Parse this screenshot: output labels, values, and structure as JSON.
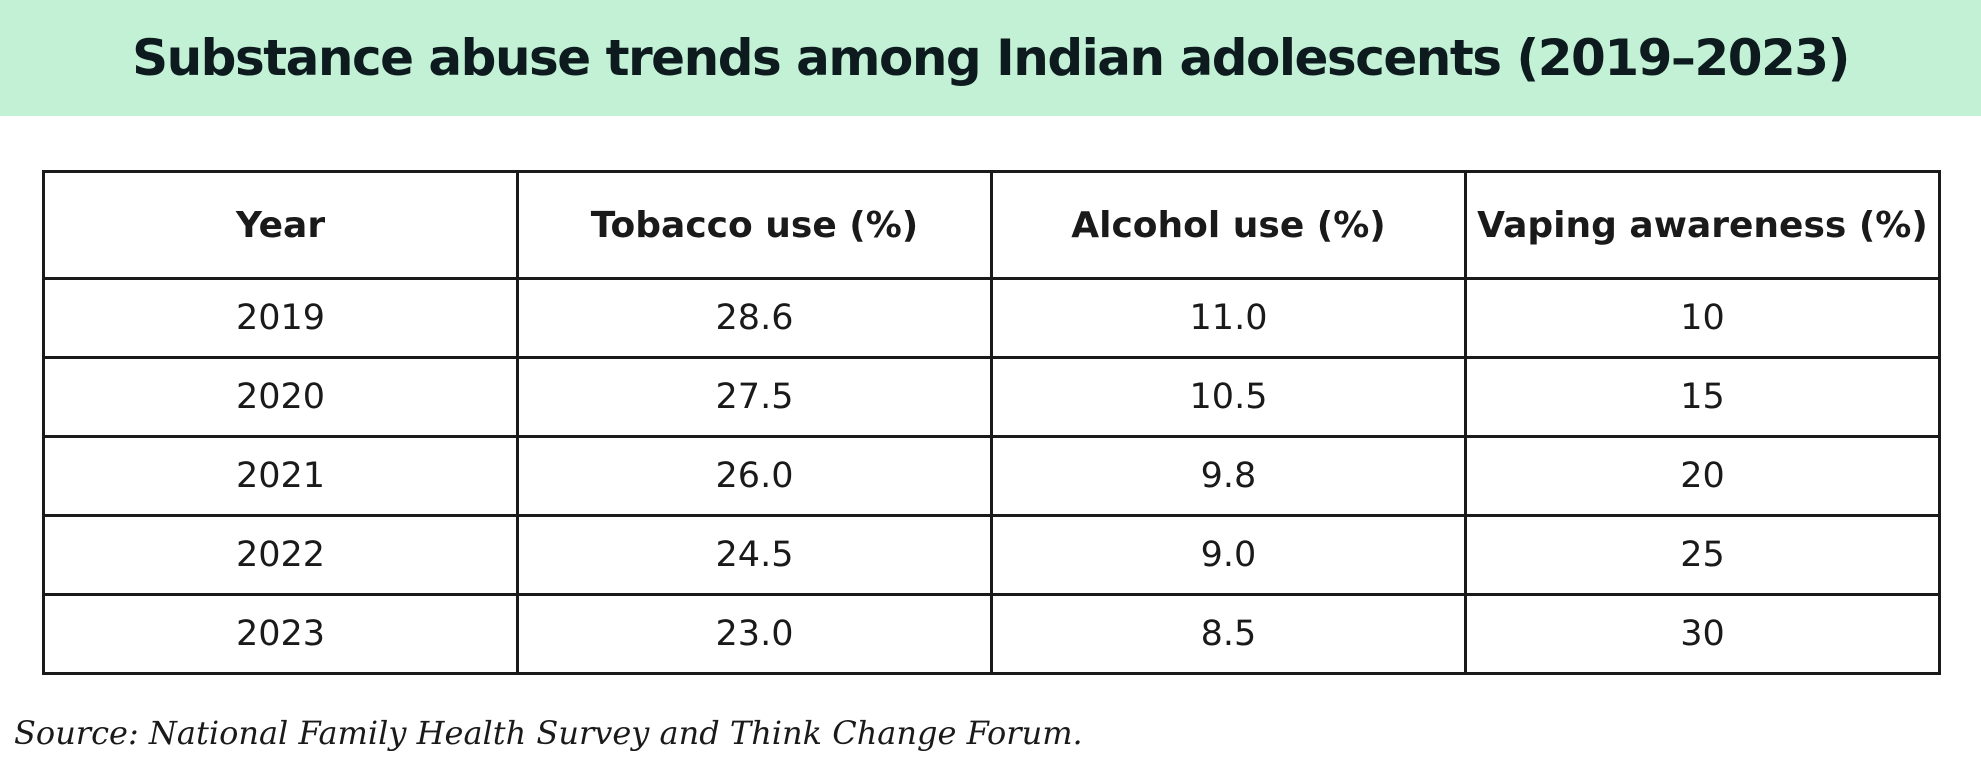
{
  "chart_data": {
    "type": "table",
    "title": "Substance abuse trends among Indian adolescents (2019–2023)",
    "columns": [
      "Year",
      "Tobacco use (%)",
      "Alcohol use (%)",
      "Vaping awareness (%)"
    ],
    "rows": [
      [
        "2019",
        "28.6",
        "11.0",
        "10"
      ],
      [
        "2020",
        "27.5",
        "10.5",
        "15"
      ],
      [
        "2021",
        "26.0",
        "9.8",
        "20"
      ],
      [
        "2022",
        "24.5",
        "9.0",
        "25"
      ],
      [
        "2023",
        "23.0",
        "8.5",
        "30"
      ]
    ],
    "source": "Source: National Family Health Survey and Think Change Forum."
  },
  "colors": {
    "banner_background": "#c2f1d6",
    "title_text": "#0d1b1e",
    "grid_lines": "#1a1a1a"
  }
}
